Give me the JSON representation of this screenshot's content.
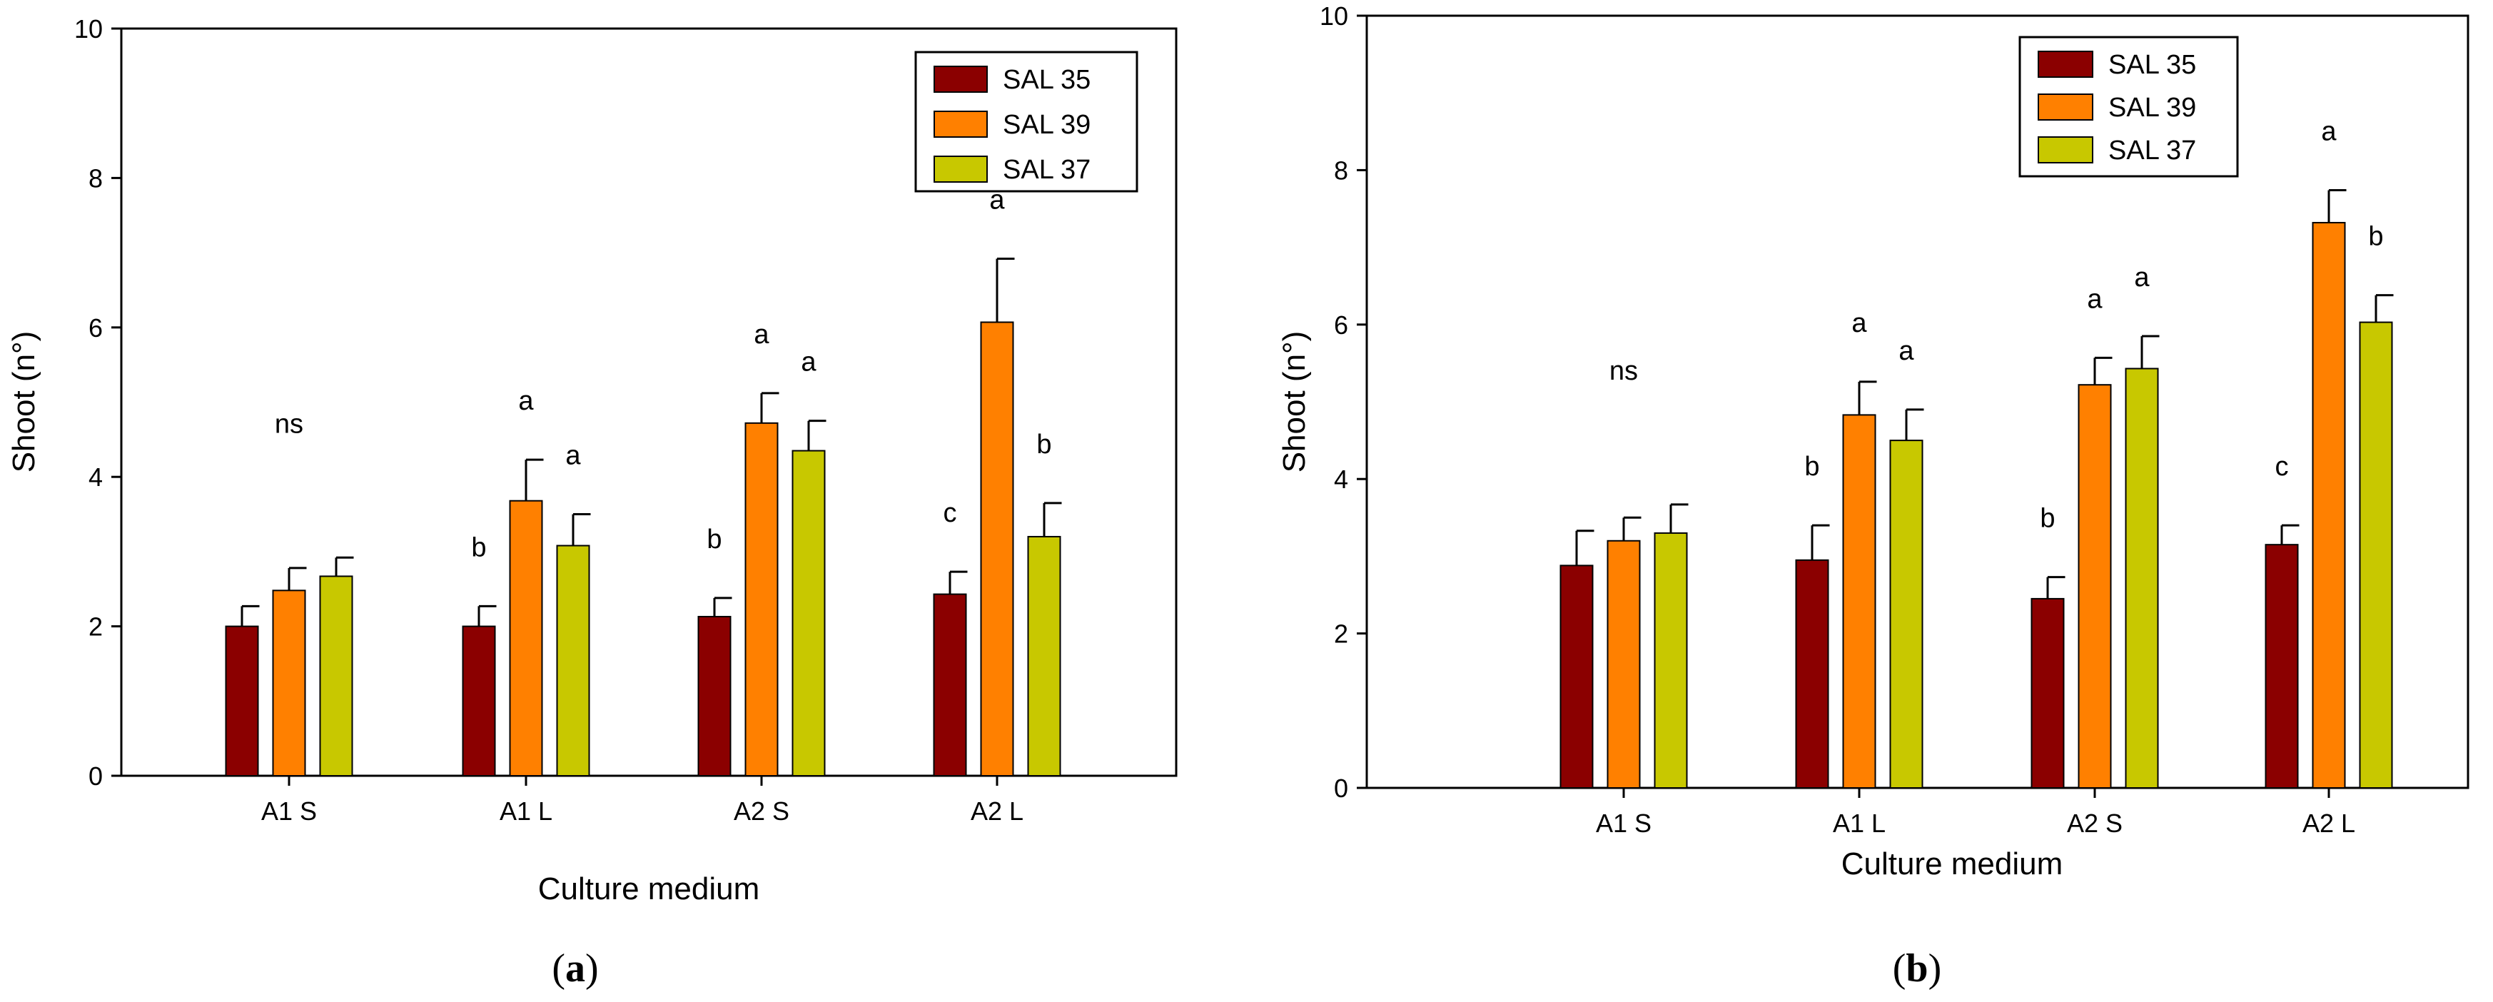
{
  "colors": {
    "SAL 35": "#8b0000",
    "SAL 39": "#ff8000",
    "SAL 37": "#c8c800"
  },
  "chart_data": [
    {
      "type": "bar",
      "panel": "a",
      "categories": [
        "A1 S",
        "A1 L",
        "A2 S",
        "A2 L"
      ],
      "xlabel": "Culture medium",
      "ylabel": "Shoot (n°)",
      "ylim": [
        0,
        10
      ],
      "yticks": [
        "0",
        "2",
        "4",
        "6",
        "8",
        "10"
      ],
      "legend": [
        "SAL 35",
        "SAL 39",
        "SAL 37"
      ],
      "legend_position": "top-right",
      "series": [
        {
          "name": "SAL 35",
          "values": [
            2.0,
            2.0,
            2.13,
            2.43
          ],
          "errors": [
            0.27,
            0.27,
            0.25,
            0.3
          ]
        },
        {
          "name": "SAL 39",
          "values": [
            2.48,
            3.68,
            4.72,
            6.07
          ],
          "errors": [
            0.3,
            0.55,
            0.4,
            0.85
          ]
        },
        {
          "name": "SAL 37",
          "values": [
            2.67,
            3.08,
            4.35,
            3.2
          ],
          "errors": [
            0.25,
            0.42,
            0.4,
            0.45
          ]
        }
      ],
      "significance": [
        {
          "category": "A1 S",
          "labels": [
            "ns"
          ]
        },
        {
          "category": "A1 L",
          "labels": [
            "b",
            "a",
            "a"
          ]
        },
        {
          "category": "A2 S",
          "labels": [
            "b",
            "a",
            "a"
          ]
        },
        {
          "category": "A2 L",
          "labels": [
            "c",
            "a",
            "b"
          ]
        }
      ],
      "panel_label": {
        "open": "(",
        "letter": "a",
        "close": ")"
      }
    },
    {
      "type": "bar",
      "panel": "b",
      "categories": [
        "A1 S",
        "A1 L",
        "A2 S",
        "A2 L"
      ],
      "xlabel": "Culture medium",
      "ylabel": "Shoot (n°)",
      "ylim": [
        0,
        10
      ],
      "yticks": [
        "0",
        "2",
        "4",
        "6",
        "8",
        "10"
      ],
      "legend": [
        "SAL 35",
        "SAL 39",
        "SAL 37"
      ],
      "legend_position": "top-center",
      "series": [
        {
          "name": "SAL 35",
          "values": [
            2.88,
            2.95,
            2.45,
            3.15
          ],
          "errors": [
            0.45,
            0.45,
            0.28,
            0.25
          ]
        },
        {
          "name": "SAL 39",
          "values": [
            3.2,
            4.83,
            5.22,
            7.32
          ],
          "errors": [
            0.3,
            0.43,
            0.35,
            0.42
          ]
        },
        {
          "name": "SAL 37",
          "values": [
            3.3,
            4.5,
            5.43,
            6.03
          ],
          "errors": [
            0.37,
            0.4,
            0.42,
            0.35
          ]
        }
      ],
      "significance": [
        {
          "category": "A1 S",
          "labels": [
            "ns"
          ]
        },
        {
          "category": "A1 L",
          "labels": [
            "b",
            "a",
            "a"
          ]
        },
        {
          "category": "A2 S",
          "labels": [
            "b",
            "a",
            "a"
          ]
        },
        {
          "category": "A2 L",
          "labels": [
            "c",
            "a",
            "b"
          ]
        }
      ],
      "panel_label": {
        "open": "(",
        "letter": "b",
        "close": ")"
      }
    }
  ]
}
